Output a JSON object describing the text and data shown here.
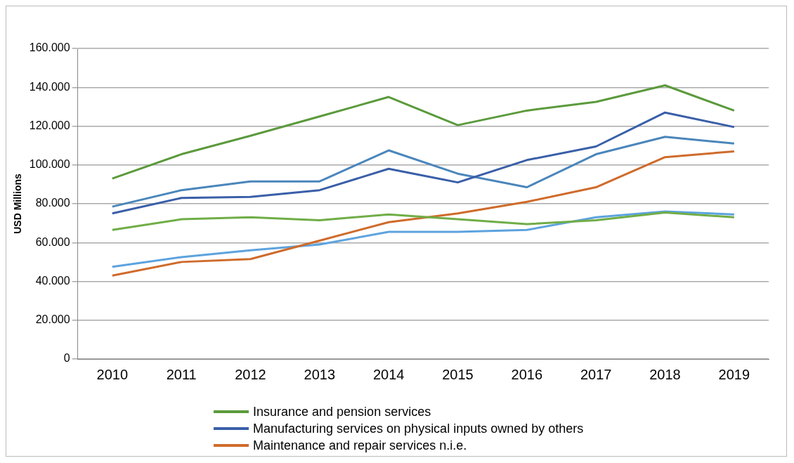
{
  "chart_data": {
    "type": "line",
    "ylabel": "USD Millions",
    "categories": [
      "2010",
      "2011",
      "2012",
      "2013",
      "2014",
      "2015",
      "2016",
      "2017",
      "2018",
      "2019"
    ],
    "series": [
      {
        "name": "Insurance and pension services",
        "color": "#5b9a3c",
        "values": [
          93000,
          105500,
          115000,
          125000,
          135000,
          120500,
          128000,
          132500,
          141000,
          128000
        ]
      },
      {
        "color": "#70ad47",
        "values": [
          66500,
          72000,
          73000,
          71500,
          74500,
          72000,
          69500,
          71500,
          75500,
          73000
        ]
      },
      {
        "name": "Manufacturing services on physical inputs owned by others",
        "color": "#3a5fa8",
        "values": [
          75000,
          83000,
          83500,
          87000,
          98000,
          91000,
          102500,
          109500,
          127000,
          119500
        ]
      },
      {
        "color": "#4a86bb",
        "values": [
          78500,
          87000,
          91500,
          91500,
          107500,
          95500,
          88500,
          105500,
          114500,
          111000
        ]
      },
      {
        "name": "Maintenance and repair services n.i.e.",
        "color": "#cf6b2b",
        "values": [
          43000,
          50000,
          51500,
          61000,
          70500,
          75000,
          81000,
          88500,
          104000,
          107000
        ]
      },
      {
        "color": "#5da3de",
        "values": [
          47500,
          52500,
          56000,
          59000,
          65500,
          65500,
          66500,
          73000,
          76000,
          74500
        ]
      }
    ],
    "ylim": [
      0,
      160000
    ],
    "yticks": [
      0,
      {
        "value": 20000,
        "label": "20.000"
      },
      {
        "value": 40000,
        "label": "40.000"
      },
      {
        "value": 60000,
        "label": "60.000"
      },
      {
        "value": 80000,
        "label": "80.000"
      },
      {
        "value": 100000,
        "label": "100.000"
      },
      {
        "value": 120000,
        "label": "120.000"
      },
      {
        "value": 140000,
        "label": "140.000"
      },
      {
        "value": 160000,
        "label": "160.000"
      }
    ],
    "grid": "y",
    "legend": "bottom",
    "marker": "none",
    "line_style": "solid"
  }
}
